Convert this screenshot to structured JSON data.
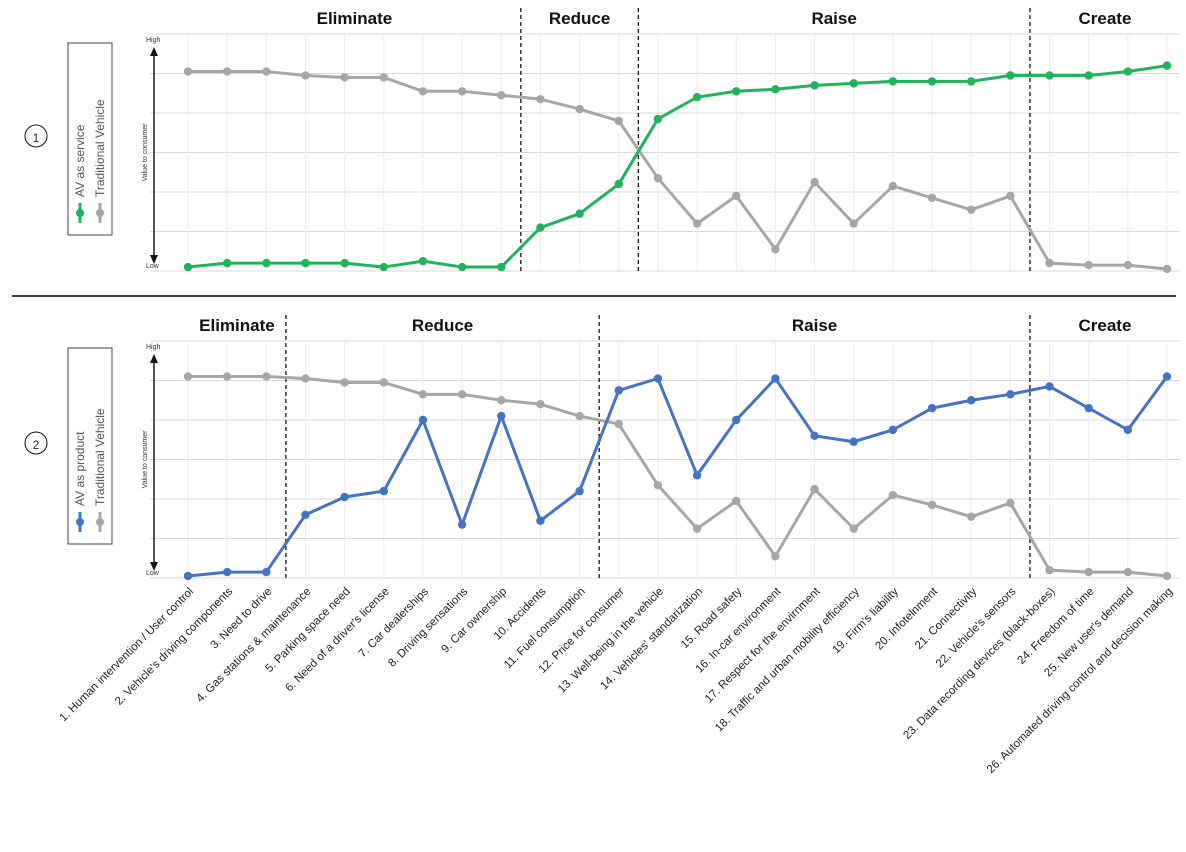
{
  "chart_data": [
    {
      "type": "line",
      "badge": "①",
      "ylabel": "Value to consumer",
      "ytick_high": "High",
      "ytick_low": "Low",
      "ylim": [
        0,
        6
      ],
      "grid": true,
      "legend_position": "left",
      "sections": [
        {
          "label": "Eliminate",
          "from": 1,
          "to": 9
        },
        {
          "label": "Reduce",
          "from": 10,
          "to": 12
        },
        {
          "label": "Raise",
          "from": 13,
          "to": 22
        },
        {
          "label": "Create",
          "from": 23,
          "to": 26
        }
      ],
      "x": [
        1,
        2,
        3,
        4,
        5,
        6,
        7,
        8,
        9,
        10,
        11,
        12,
        13,
        14,
        15,
        16,
        17,
        18,
        19,
        20,
        21,
        22,
        23,
        24,
        25,
        26
      ],
      "series": [
        {
          "name": "AV as service",
          "color": "#1fb35a",
          "values": [
            0.1,
            0.2,
            0.2,
            0.2,
            0.2,
            0.1,
            0.25,
            0.1,
            0.1,
            1.1,
            1.45,
            2.2,
            3.85,
            4.4,
            4.55,
            4.6,
            4.7,
            4.75,
            4.8,
            4.8,
            4.8,
            4.95,
            4.95,
            4.95,
            5.05,
            5.2
          ]
        },
        {
          "name": "Traditional Vehicle",
          "color": "#a6a6a6",
          "values": [
            5.05,
            5.05,
            5.05,
            4.95,
            4.9,
            4.9,
            4.55,
            4.55,
            4.45,
            4.35,
            4.1,
            3.8,
            2.35,
            1.2,
            1.9,
            0.55,
            2.25,
            1.2,
            2.15,
            1.85,
            1.55,
            1.9,
            0.2,
            0.15,
            0.15,
            0.05
          ]
        }
      ]
    },
    {
      "type": "line",
      "badge": "②",
      "ylabel": "Value to consumer",
      "ytick_high": "High",
      "ytick_low": "Low",
      "ylim": [
        0,
        6
      ],
      "grid": true,
      "legend_position": "left",
      "sections": [
        {
          "label": "Eliminate",
          "from": 1,
          "to": 3
        },
        {
          "label": "Reduce",
          "from": 4,
          "to": 11
        },
        {
          "label": "Raise",
          "from": 12,
          "to": 22
        },
        {
          "label": "Create",
          "from": 23,
          "to": 26
        }
      ],
      "x": [
        1,
        2,
        3,
        4,
        5,
        6,
        7,
        8,
        9,
        10,
        11,
        12,
        13,
        14,
        15,
        16,
        17,
        18,
        19,
        20,
        21,
        22,
        23,
        24,
        25,
        26
      ],
      "series": [
        {
          "name": "AV as product",
          "color": "#4472c4",
          "values": [
            0.05,
            0.15,
            0.15,
            1.6,
            2.05,
            2.2,
            4.0,
            1.35,
            4.1,
            1.45,
            2.2,
            4.75,
            5.05,
            2.6,
            4.0,
            5.05,
            3.6,
            3.45,
            3.75,
            4.3,
            4.5,
            4.65,
            4.85,
            4.3,
            3.75,
            5.1
          ]
        },
        {
          "name": "Traditional Vehicle",
          "color": "#a6a6a6",
          "values": [
            5.1,
            5.1,
            5.1,
            5.05,
            4.95,
            4.95,
            4.65,
            4.65,
            4.5,
            4.4,
            4.1,
            3.9,
            2.35,
            1.25,
            1.95,
            0.55,
            2.25,
            1.25,
            2.1,
            1.85,
            1.55,
            1.9,
            0.2,
            0.15,
            0.15,
            0.05
          ]
        }
      ]
    }
  ],
  "categories": [
    "1. Human intervention / User control",
    "2. Vehicle's driving components",
    "3. Need to drive",
    "4. Gas stations & maintenance",
    "5. Parking space need",
    "6. Need of a driver's license",
    "7. Car dealerships",
    "8. Driving sensations",
    "9. Car ownership",
    "10. Accidents",
    "11. Fuel consumption",
    "12. Price for consumer",
    "13. Well-being in the vehicle",
    "14. Vehicles' standarization",
    "15. Road safety",
    "16. In-car environment",
    "17. Respect for the envirnment",
    "18. Traffic and urban mobility efficiency",
    "19. Firm's liability",
    "20. Infotelnment",
    "21. Connectivity",
    "22. Vehicle's sensors",
    "23. Data recording devices (black-boxes)",
    "24. Freedom of time",
    "25. New user's demand",
    "26. Automated driving control and decision making"
  ]
}
